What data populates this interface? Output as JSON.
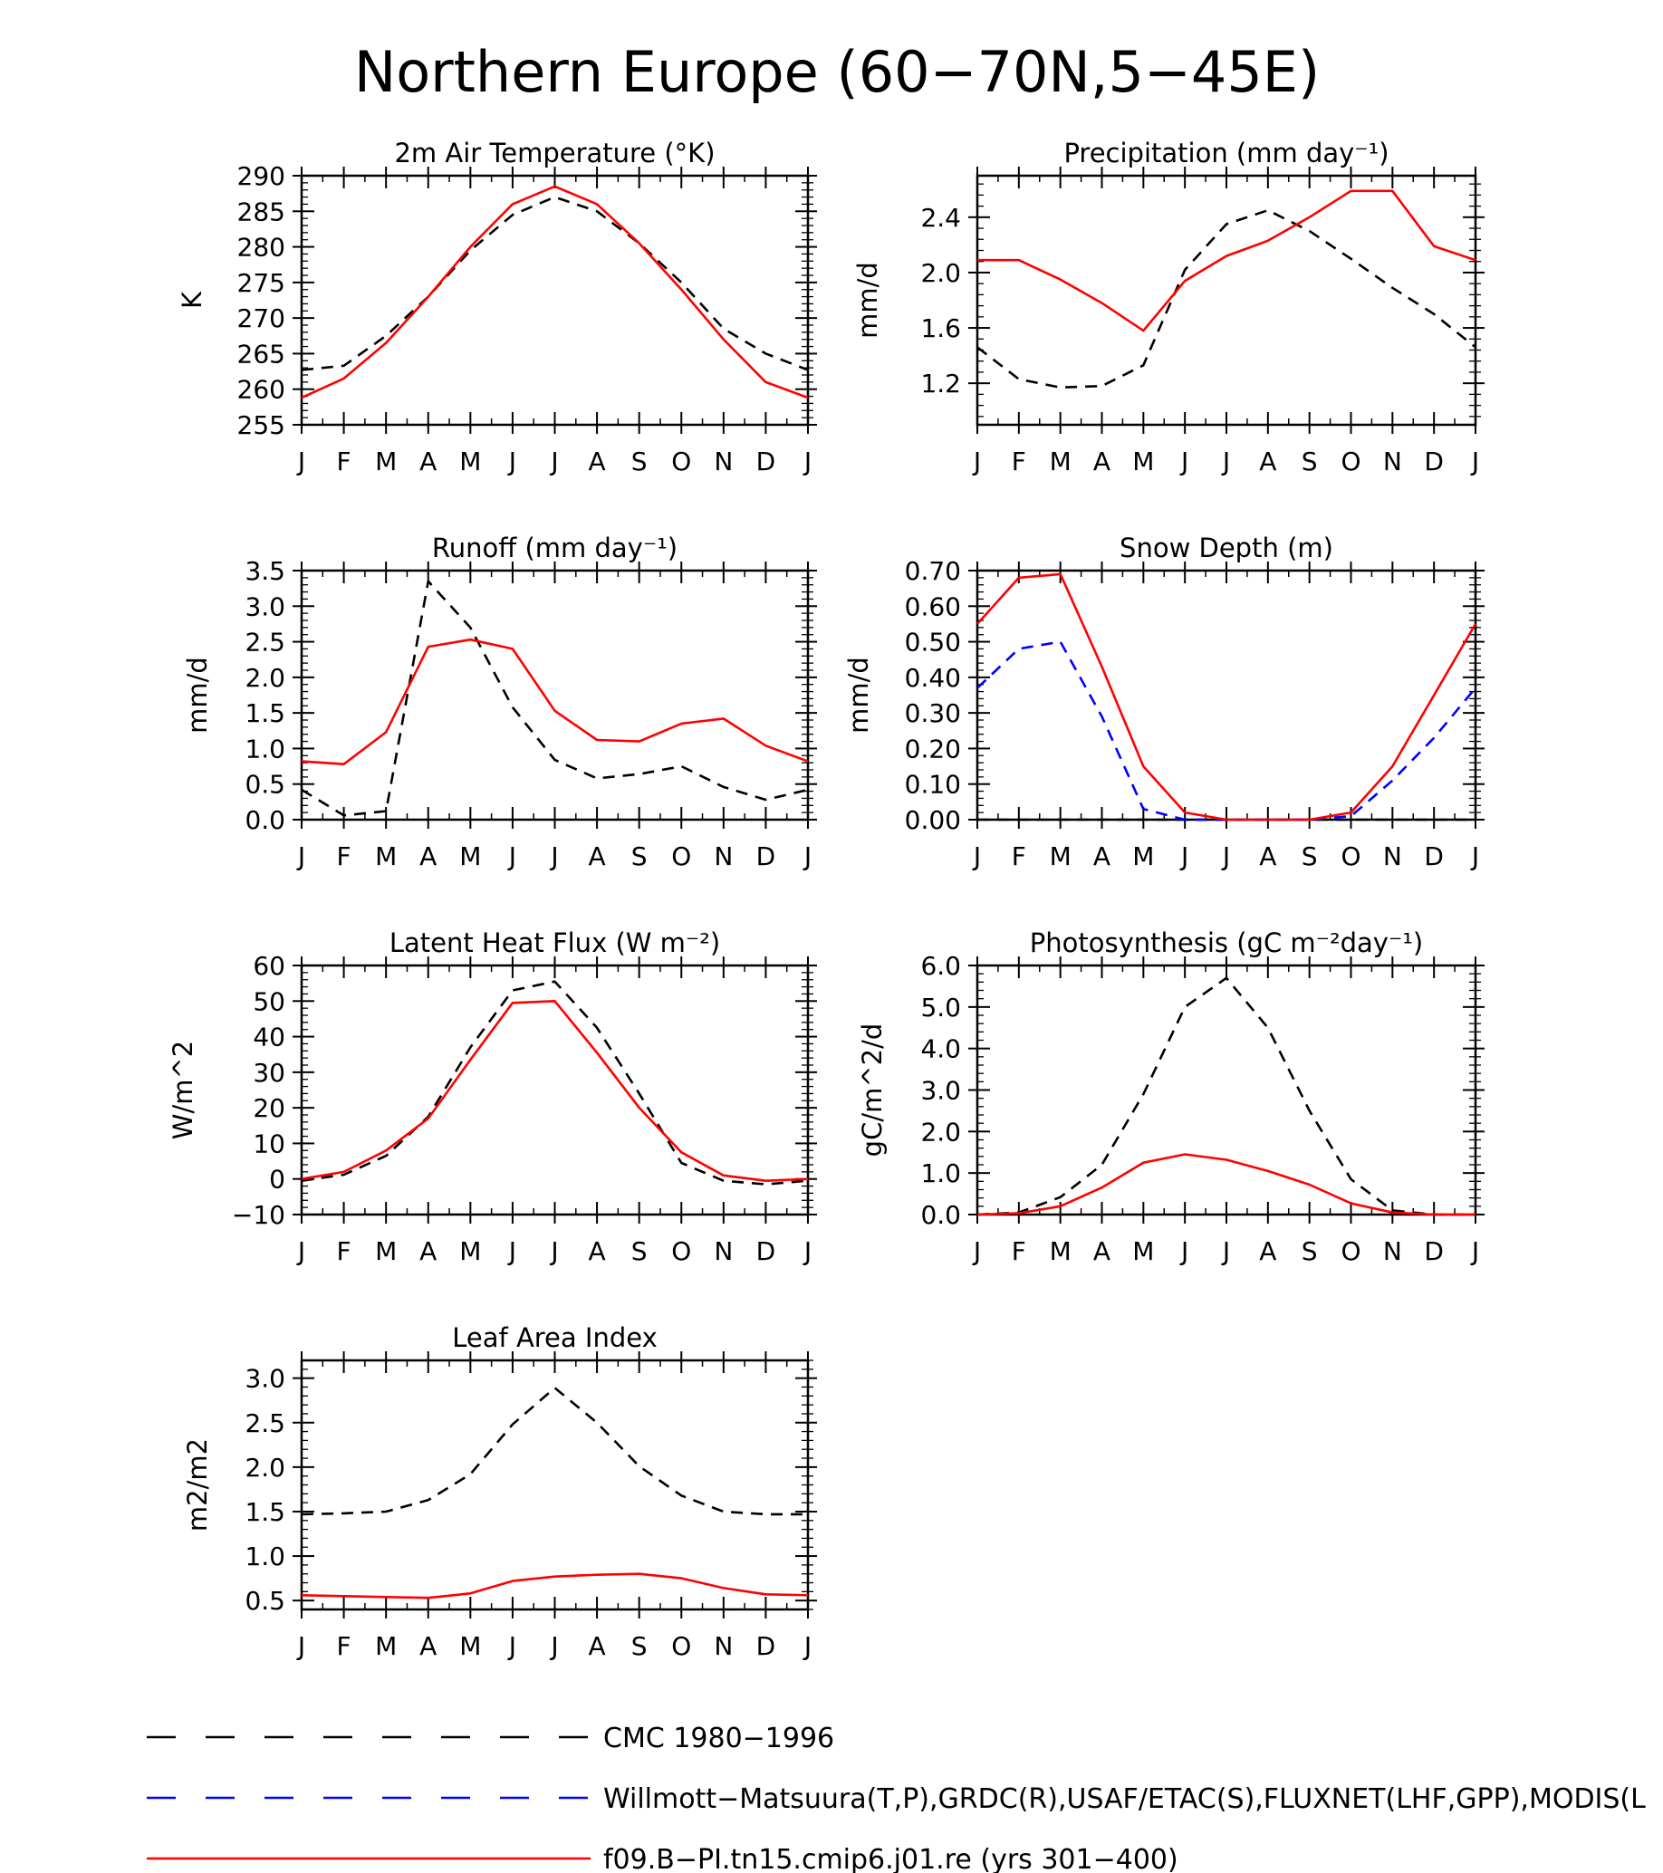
{
  "page_title": "Northern Europe (60−70N,5−45E)",
  "months": [
    "J",
    "F",
    "M",
    "A",
    "M",
    "J",
    "J",
    "A",
    "S",
    "O",
    "N",
    "D",
    "J"
  ],
  "colors": {
    "obs1": "#000000",
    "obs2": "#0000ff",
    "model": "#ff0000"
  },
  "legend": [
    {
      "text": "CMC 1980−1996",
      "color": "#000000",
      "dash": "dashed"
    },
    {
      "text": "Willmott−Matsuura(T,P),GRDC(R),USAF/ETAC(S),FLUXNET(LHF,GPP),MODIS(L",
      "color": "#0000ff",
      "dash": "dashed"
    },
    {
      "text": "f09.B−PI.tn15.cmip6.j01.re (yrs 301−400)",
      "color": "#ff0000",
      "dash": "solid"
    }
  ],
  "chart_data": [
    {
      "type": "line",
      "title": "2m Air Temperature (°K)",
      "ylabel": "K",
      "ylim": [
        255,
        290
      ],
      "yticks": [
        255,
        260,
        265,
        270,
        275,
        280,
        285,
        290
      ],
      "ytick_labels": [
        "255",
        "260",
        "265",
        "270",
        "275",
        "280",
        "285",
        "290"
      ],
      "series": [
        {
          "color": "#000000",
          "dash": "dashed",
          "values": [
            262.7,
            263.3,
            267.5,
            273.0,
            279.5,
            284.5,
            287.0,
            285.0,
            280.5,
            275.0,
            268.5,
            265.0,
            262.7
          ]
        },
        {
          "color": "#ff0000",
          "dash": "solid",
          "values": [
            258.8,
            261.5,
            266.5,
            273.0,
            280.0,
            286.0,
            288.5,
            286.0,
            280.5,
            274.0,
            267.0,
            261.0,
            258.8
          ]
        }
      ]
    },
    {
      "type": "line",
      "title": "Precipitation (mm day⁻¹)",
      "ylabel": "mm/d",
      "ylim": [
        0.9,
        2.7
      ],
      "yticks": [
        1.2,
        1.6,
        2.0,
        2.4
      ],
      "ytick_labels": [
        "1.2",
        "1.6",
        "2.0",
        "2.4"
      ],
      "series": [
        {
          "color": "#000000",
          "dash": "dashed",
          "values": [
            1.46,
            1.23,
            1.17,
            1.18,
            1.33,
            2.02,
            2.35,
            2.45,
            2.3,
            2.1,
            1.89,
            1.7,
            1.46
          ]
        },
        {
          "color": "#ff0000",
          "dash": "solid",
          "values": [
            2.09,
            2.09,
            1.95,
            1.78,
            1.58,
            1.94,
            2.12,
            2.23,
            2.4,
            2.59,
            2.59,
            2.19,
            2.09
          ]
        }
      ]
    },
    {
      "type": "line",
      "title": "Runoff (mm day⁻¹)",
      "ylabel": "mm/d",
      "ylim": [
        0,
        3.5
      ],
      "yticks": [
        0,
        0.5,
        1.0,
        1.5,
        2.0,
        2.5,
        3.0,
        3.5
      ],
      "ytick_labels": [
        "0.0",
        "0.5",
        "1.0",
        "1.5",
        "2.0",
        "2.5",
        "3.0",
        "3.5"
      ],
      "series": [
        {
          "color": "#000000",
          "dash": "dashed",
          "values": [
            0.42,
            0.06,
            0.12,
            3.35,
            2.7,
            1.58,
            0.84,
            0.58,
            0.64,
            0.75,
            0.46,
            0.28,
            0.42
          ]
        },
        {
          "color": "#ff0000",
          "dash": "solid",
          "values": [
            0.82,
            0.78,
            1.23,
            2.43,
            2.53,
            2.4,
            1.53,
            1.12,
            1.1,
            1.35,
            1.42,
            1.04,
            0.82
          ]
        }
      ]
    },
    {
      "type": "line",
      "title": "Snow Depth (m)",
      "ylabel": "mm/d",
      "ylim": [
        0,
        0.7
      ],
      "yticks": [
        0,
        0.1,
        0.2,
        0.3,
        0.4,
        0.5,
        0.6,
        0.7
      ],
      "ytick_labels": [
        "0.00",
        "0.10",
        "0.20",
        "0.30",
        "0.40",
        "0.50",
        "0.60",
        "0.70"
      ],
      "series": [
        {
          "color": "#000000",
          "dash": "dashed",
          "values": [
            0,
            0,
            0,
            0,
            0,
            0,
            0,
            0,
            0,
            0,
            0,
            0,
            0
          ]
        },
        {
          "color": "#0000ff",
          "dash": "dashed",
          "values": [
            0.37,
            0.48,
            0.5,
            0.29,
            0.03,
            0.0,
            0.0,
            0.0,
            0.0,
            0.01,
            0.11,
            0.23,
            0.37
          ]
        },
        {
          "color": "#ff0000",
          "dash": "solid",
          "values": [
            0.55,
            0.68,
            0.69,
            0.43,
            0.15,
            0.02,
            0.0,
            0.0,
            0.0,
            0.02,
            0.15,
            0.35,
            0.55
          ]
        }
      ]
    },
    {
      "type": "line",
      "title": "Latent Heat Flux (W m⁻²)",
      "ylabel": "W/m^2",
      "ylim": [
        -10,
        60
      ],
      "yticks": [
        -10,
        0,
        10,
        20,
        30,
        40,
        50,
        60
      ],
      "ytick_labels": [
        "−10",
        "0",
        "10",
        "20",
        "30",
        "40",
        "50",
        "60"
      ],
      "series": [
        {
          "color": "#000000",
          "dash": "dashed",
          "values": [
            -0.5,
            1.2,
            6.5,
            17.5,
            37.0,
            53.0,
            55.5,
            42.5,
            24.0,
            4.5,
            -0.5,
            -1.5,
            -0.5
          ]
        },
        {
          "color": "#ff0000",
          "dash": "solid",
          "values": [
            0.0,
            2.0,
            8.0,
            17.0,
            33.5,
            49.5,
            50.0,
            35.5,
            20.0,
            7.5,
            1.0,
            -0.5,
            0.0
          ]
        }
      ]
    },
    {
      "type": "line",
      "title": "Photosynthesis (gC m⁻²day⁻¹)",
      "ylabel": "gC/m^2/d",
      "ylim": [
        0,
        6.0
      ],
      "yticks": [
        0,
        1,
        2,
        3,
        4,
        5,
        6
      ],
      "ytick_labels": [
        "0.0",
        "1.0",
        "2.0",
        "3.0",
        "4.0",
        "5.0",
        "6.0"
      ],
      "series": [
        {
          "color": "#000000",
          "dash": "dashed",
          "values": [
            0.0,
            0.05,
            0.42,
            1.2,
            2.9,
            5.0,
            5.7,
            4.5,
            2.5,
            0.85,
            0.1,
            0.0,
            0.0
          ]
        },
        {
          "color": "#ff0000",
          "dash": "solid",
          "values": [
            0.0,
            0.03,
            0.2,
            0.65,
            1.25,
            1.45,
            1.32,
            1.05,
            0.72,
            0.27,
            0.05,
            0.0,
            0.0
          ]
        }
      ]
    },
    {
      "type": "line",
      "title": "Leaf Area Index",
      "ylabel": "m2/m2",
      "ylim": [
        0.4,
        3.2
      ],
      "yticks": [
        0.5,
        1.0,
        1.5,
        2.0,
        2.5,
        3.0
      ],
      "ytick_labels": [
        "0.5",
        "1.0",
        "1.5",
        "2.0",
        "2.5",
        "3.0"
      ],
      "series": [
        {
          "color": "#000000",
          "dash": "dashed",
          "values": [
            1.47,
            1.48,
            1.5,
            1.63,
            1.92,
            2.48,
            2.89,
            2.5,
            2.01,
            1.68,
            1.5,
            1.47,
            1.47
          ]
        },
        {
          "color": "#ff0000",
          "dash": "solid",
          "values": [
            0.56,
            0.55,
            0.54,
            0.53,
            0.58,
            0.72,
            0.77,
            0.79,
            0.8,
            0.75,
            0.64,
            0.57,
            0.56
          ]
        }
      ]
    }
  ]
}
